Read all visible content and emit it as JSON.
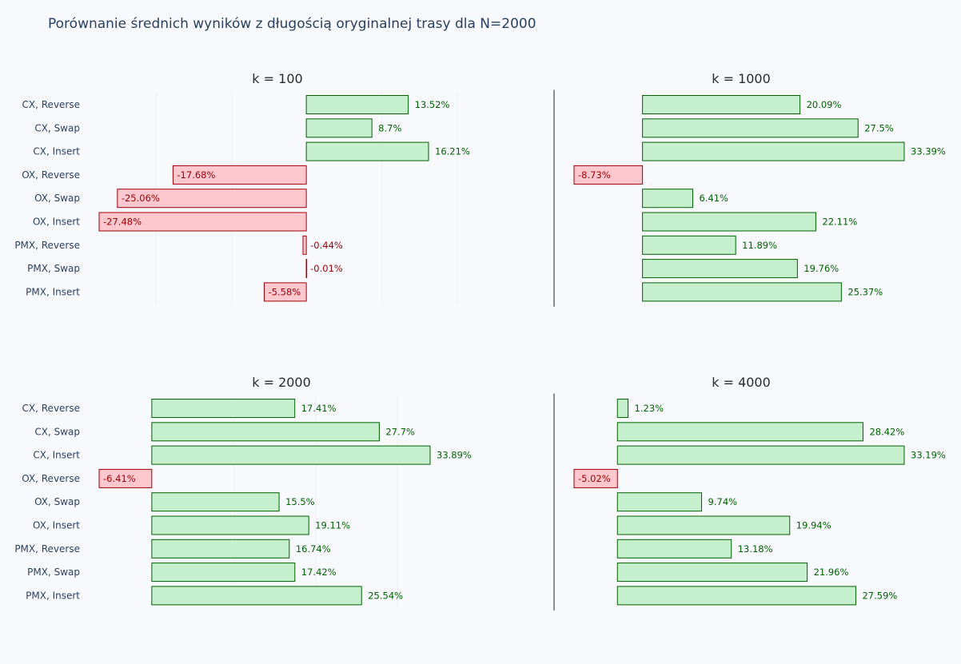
{
  "title": "Porównanie średnich wyników z długością oryginalnej trasy dla N=2000",
  "colors": {
    "background": "#f8f9fd",
    "positive_fill": "#c6efce",
    "positive_line": "#006100",
    "negative_fill": "#ffc7ce",
    "negative_line": "#9c0006",
    "grid": "#eef0f5",
    "zero_line": "#444444"
  },
  "chart_data": [
    {
      "type": "bar",
      "orientation": "horizontal",
      "title": "k = 100",
      "categories": [
        "CX, Reverse",
        "CX, Swap",
        "CX, Insert",
        "OX, Reverse",
        "OX, Swap",
        "OX, Insert",
        "PMX, Reverse",
        "PMX, Swap",
        "PMX, Insert"
      ],
      "values": [
        13.52,
        8.7,
        16.21,
        -17.68,
        -25.06,
        -27.48,
        -0.44,
        -0.01,
        -5.58
      ],
      "labels": [
        "13.52%",
        "8.7%",
        "16.21%",
        "-17.68%",
        "-25.06%",
        "-27.48%",
        "-0.44%",
        "-0.01%",
        "-5.58%"
      ],
      "xlim": [
        -27.48,
        16.21
      ]
    },
    {
      "type": "bar",
      "orientation": "horizontal",
      "title": "k = 1000",
      "categories": [
        "CX, Reverse",
        "CX, Swap",
        "CX, Insert",
        "OX, Reverse",
        "OX, Swap",
        "OX, Insert",
        "PMX, Reverse",
        "PMX, Swap",
        "PMX, Insert"
      ],
      "values": [
        20.09,
        27.5,
        33.39,
        -8.73,
        6.41,
        22.11,
        11.89,
        19.76,
        25.37
      ],
      "labels": [
        "20.09%",
        "27.5%",
        "33.39%",
        "-8.73%",
        "6.41%",
        "22.11%",
        "11.89%",
        "19.76%",
        "25.37%"
      ],
      "xlim": [
        -8.73,
        33.39
      ]
    },
    {
      "type": "bar",
      "orientation": "horizontal",
      "title": "k = 2000",
      "categories": [
        "CX, Reverse",
        "CX, Swap",
        "CX, Insert",
        "OX, Reverse",
        "OX, Swap",
        "OX, Insert",
        "PMX, Reverse",
        "PMX, Swap",
        "PMX, Insert"
      ],
      "values": [
        17.41,
        27.7,
        33.89,
        -6.41,
        15.5,
        19.11,
        16.74,
        17.42,
        25.54
      ],
      "labels": [
        "17.41%",
        "27.7%",
        "33.89%",
        "-6.41%",
        "15.5%",
        "19.11%",
        "16.74%",
        "17.42%",
        "25.54%"
      ],
      "xlim": [
        -6.41,
        33.89
      ]
    },
    {
      "type": "bar",
      "orientation": "horizontal",
      "title": "k = 4000",
      "categories": [
        "CX, Reverse",
        "CX, Swap",
        "CX, Insert",
        "OX, Reverse",
        "OX, Swap",
        "OX, Insert",
        "PMX, Reverse",
        "PMX, Swap",
        "PMX, Insert"
      ],
      "values": [
        1.23,
        28.42,
        33.19,
        -5.02,
        9.74,
        19.94,
        13.18,
        21.96,
        27.59
      ],
      "labels": [
        "1.23%",
        "28.42%",
        "33.19%",
        "-5.02%",
        "9.74%",
        "19.94%",
        "13.18%",
        "21.96%",
        "27.59%"
      ],
      "xlim": [
        -5.02,
        33.19
      ]
    }
  ]
}
